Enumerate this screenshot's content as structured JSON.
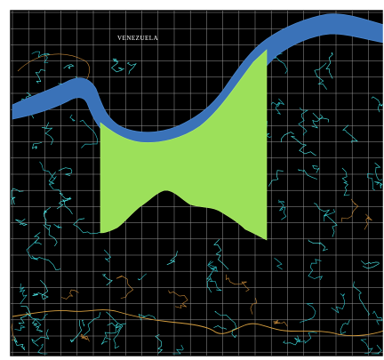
{
  "map": {
    "title": "VENEZUELA"
  }
}
